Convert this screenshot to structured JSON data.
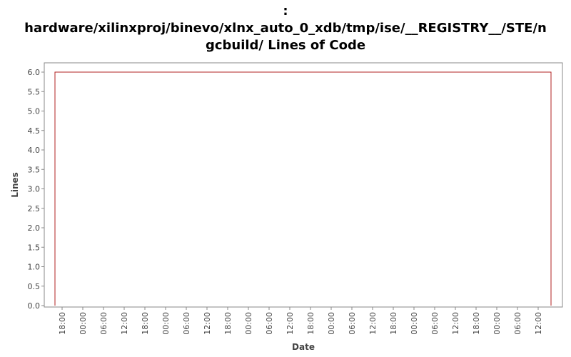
{
  "chart_data": {
    "type": "line",
    "title_lines": [
      ":",
      "hardware/xilinxproj/binevo/xlnx_auto_0_xdb/tmp/ise/__REGISTRY__/STE/n",
      "gcbuild/ Lines of Code"
    ],
    "xlabel": "Date",
    "ylabel": "Lines",
    "ylim": [
      0,
      6
    ],
    "y_ticks": [
      "0.0",
      "0.5",
      "1.0",
      "1.5",
      "2.0",
      "2.5",
      "3.0",
      "3.5",
      "4.0",
      "4.5",
      "5.0",
      "5.5",
      "6.0"
    ],
    "x_ticks": [
      "18:00",
      "00:00",
      "06:00",
      "12:00",
      "18:00",
      "00:00",
      "06:00",
      "12:00",
      "18:00",
      "00:00",
      "06:00",
      "12:00",
      "18:00",
      "00:00",
      "06:00",
      "12:00",
      "18:00",
      "00:00",
      "06:00",
      "12:00",
      "18:00",
      "00:00",
      "06:00",
      "12:00"
    ],
    "series": [
      {
        "points": [
          {
            "x": 0.0,
            "y": 0
          },
          {
            "x": 0.0,
            "y": 6
          },
          {
            "x": 1.0,
            "y": 6
          },
          {
            "x": 1.0,
            "y": 0
          }
        ]
      }
    ],
    "line_color": "#b22222",
    "grid": false
  }
}
